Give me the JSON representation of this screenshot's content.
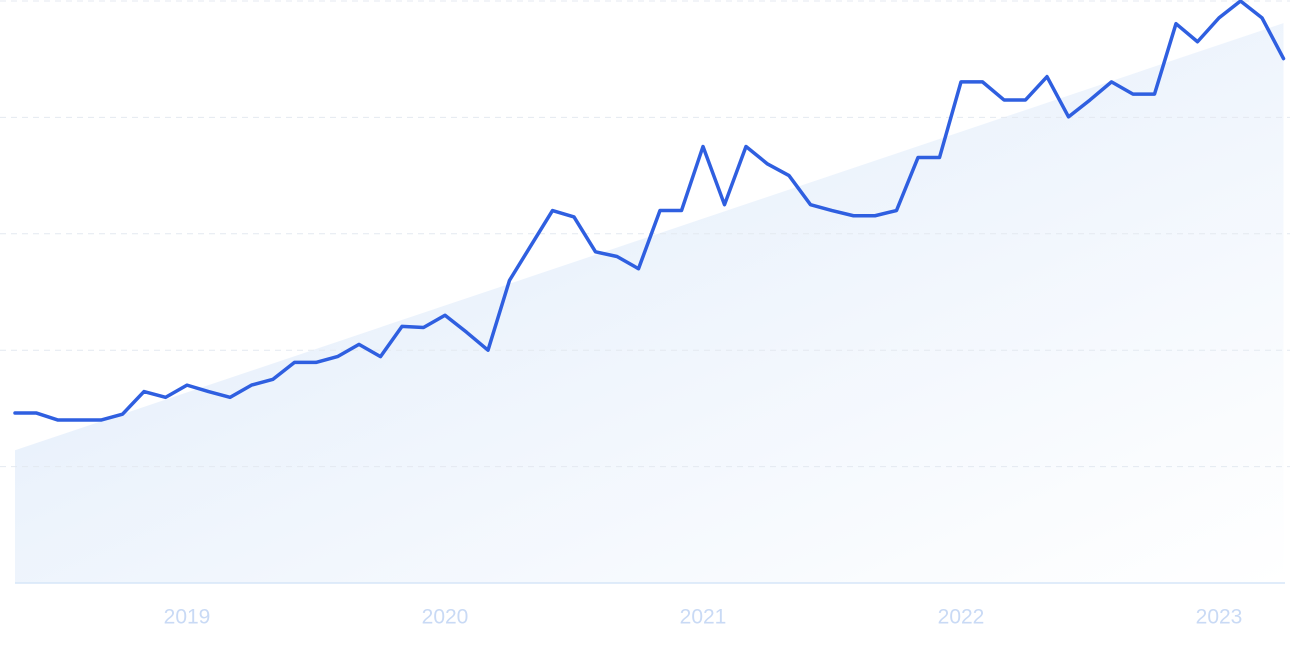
{
  "chart_data": {
    "type": "line",
    "x": [
      0,
      1,
      2,
      3,
      4,
      5,
      6,
      7,
      8,
      9,
      10,
      11,
      12,
      13,
      14,
      15,
      16,
      17,
      18,
      19,
      20,
      21,
      22,
      23,
      24,
      25,
      26,
      27,
      28,
      29,
      30,
      31,
      32,
      33,
      34,
      35,
      36,
      37,
      38,
      39,
      40,
      41,
      42,
      43,
      44,
      45,
      46,
      47,
      48,
      49,
      50,
      51,
      52,
      53,
      54,
      55,
      56,
      57,
      58,
      59
    ],
    "series": [
      {
        "color": "#2f5fe0",
        "values": [
          29.2,
          29.2,
          28.0,
          28.0,
          28.0,
          29.0,
          32.9,
          31.9,
          34.0,
          32.9,
          31.9,
          34.0,
          35.0,
          37.9,
          37.9,
          38.9,
          41.0,
          38.9,
          44.1,
          43.9,
          46.0,
          43.1,
          40.0,
          52.0,
          58.0,
          64.0,
          62.9,
          56.9,
          56.1,
          54.0,
          64.0,
          64.0,
          75.0,
          65.0,
          75.0,
          72.0,
          70.0,
          65.0,
          64.0,
          63.1,
          63.1,
          64.0,
          73.1,
          73.1,
          86.1,
          86.1,
          83.0,
          83.0,
          87.0,
          80.1,
          83.0,
          86.1,
          84.0,
          84.0,
          96.1,
          93.0,
          97.1,
          100,
          97.1,
          90.1
        ]
      },
      {
        "type": "area",
        "color": "#dce9fa",
        "x": [
          0,
          59
        ],
        "values": [
          22.8,
          96.2
        ]
      }
    ],
    "xlim": [
      0,
      59
    ],
    "xticks": [
      {
        "value": 8,
        "label": "2019"
      },
      {
        "value": 20,
        "label": "2020"
      },
      {
        "value": 32,
        "label": "2021"
      },
      {
        "value": 44,
        "label": "2022"
      },
      {
        "value": 56,
        "label": "2023"
      }
    ],
    "ylim": [
      0,
      100
    ],
    "yticks": [
      0,
      20,
      40,
      60,
      80,
      100
    ],
    "grid": true
  }
}
